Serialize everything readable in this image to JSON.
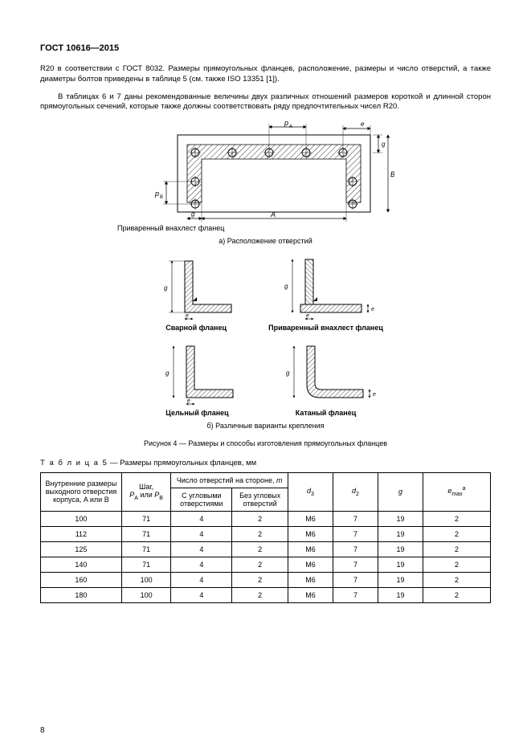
{
  "header": "ГОСТ 10616—2015",
  "para1": "R20 в соответствии с ГОСТ 8032. Размеры прямоугольных фланцев, расположение, размеры и число отверстий, а также диаметры болтов приведены в таблице 5 (см. также ISO 13351 [1]).",
  "para2": "В таблицах 6 и 7 даны рекомендованные величины двух различных отношений размеров короткой и длинной сторон прямоугольных сечений, которые также должны соответствовать ряду предпочтительных чисел R20.",
  "flange_label": "Приваренный внахлест фланец",
  "caption_a": "а)  Расположение отверстий",
  "sub1": "Сварной фланец",
  "sub2": "Приваренный внахлест фланец",
  "sub3": "Цельный  фланец",
  "sub4": "Катаный фланец",
  "caption_b": "б)  Различные варианты крепления",
  "fig_title": "Рисунок 4 — Размеры и способы изготовления прямоугольных фланцев",
  "table_title_prefix": "Т а б л и ц а   5",
  "table_title_rest": " — Размеры прямоугольных фланцев, мм",
  "th": {
    "c1": "Внутренние размеры выходного отверстия корпуса, A или B",
    "c2_line1": "Шаг,",
    "c3": "Число отверстий на стороне, ",
    "c3i": "m",
    "c3a": "С угловыми отверстиями",
    "c3b": "Без угловых отверстий",
    "c4": "d",
    "c4s": "3",
    "c5": "d",
    "c5s": "2",
    "c6": "g",
    "c7": "e",
    "c7s": "max",
    "c7sup": "a"
  },
  "rows": [
    {
      "a": "100",
      "p": "71",
      "m1": "4",
      "m2": "2",
      "d3": "M6",
      "d2": "7",
      "g": "19",
      "e": "2"
    },
    {
      "a": "112",
      "p": "71",
      "m1": "4",
      "m2": "2",
      "d3": "M6",
      "d2": "7",
      "g": "19",
      "e": "2"
    },
    {
      "a": "125",
      "p": "71",
      "m1": "4",
      "m2": "2",
      "d3": "M6",
      "d2": "7",
      "g": "19",
      "e": "2"
    },
    {
      "a": "140",
      "p": "71",
      "m1": "4",
      "m2": "2",
      "d3": "M6",
      "d2": "7",
      "g": "19",
      "e": "2"
    },
    {
      "a": "160",
      "p": "100",
      "m1": "4",
      "m2": "2",
      "d3": "M6",
      "d2": "7",
      "g": "19",
      "e": "2"
    },
    {
      "a": "180",
      "p": "100",
      "m1": "4",
      "m2": "2",
      "d3": "M6",
      "d2": "7",
      "g": "19",
      "e": "2"
    }
  ],
  "pageNumber": "8",
  "topFig": {
    "pA": "p",
    "pAs": "A",
    "A": "A",
    "g": "g",
    "B": "B",
    "g2": "g",
    "pB": "p",
    "pBs": "B",
    "e": "e",
    "ink": "#000000",
    "hatch": "#000000"
  },
  "angle": {
    "g": "g",
    "e": "e",
    "ink": "#000000"
  }
}
